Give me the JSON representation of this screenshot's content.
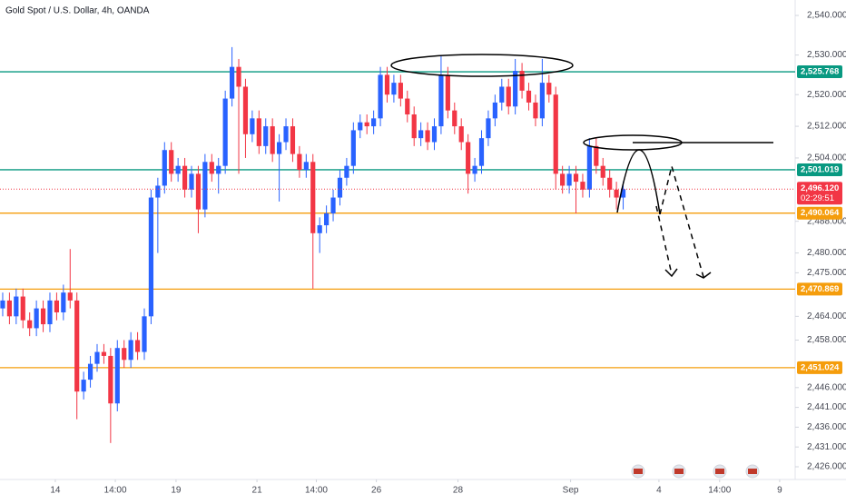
{
  "chart_data": {
    "type": "candlestick",
    "title": "Gold Spot / U.S. Dollar, 4h, OANDA",
    "up_color": "#2962ff",
    "down_color": "#f23645",
    "grid": false,
    "xlim": [
      -0.4,
      117.5
    ],
    "xticks": [
      {
        "value": 7.8,
        "label": "14"
      },
      {
        "value": 16.7,
        "label": "14:00"
      },
      {
        "value": 25.7,
        "label": "19"
      },
      {
        "value": 37.7,
        "label": "21"
      },
      {
        "value": 46.5,
        "label": "14:00"
      },
      {
        "value": 55.4,
        "label": "26"
      },
      {
        "value": 67.5,
        "label": "28"
      },
      {
        "value": 84.2,
        "label": "Sep"
      },
      {
        "value": 97.3,
        "label": "4"
      },
      {
        "value": 106.3,
        "label": "14:00"
      },
      {
        "value": 115.2,
        "label": "9"
      }
    ],
    "ylim": [
      2426,
      2540
    ],
    "yticks": [
      {
        "value": 2540,
        "label": "2,540.000"
      },
      {
        "value": 2530,
        "label": "2,530.000"
      },
      {
        "value": 2520,
        "label": "2,520.000"
      },
      {
        "value": 2512,
        "label": "2,512.000"
      },
      {
        "value": 2504,
        "label": "2,504.000"
      },
      {
        "value": 2488,
        "label": "2,488.000"
      },
      {
        "value": 2480,
        "label": "2,480.000"
      },
      {
        "value": 2475,
        "label": "2,475.000"
      },
      {
        "value": 2464,
        "label": "2,464.000"
      },
      {
        "value": 2458,
        "label": "2,458.000"
      },
      {
        "value": 2446,
        "label": "2,446.000"
      },
      {
        "value": 2441,
        "label": "2,441.000"
      },
      {
        "value": 2436,
        "label": "2,436.000"
      },
      {
        "value": 2431,
        "label": "2,431.000"
      },
      {
        "value": 2426,
        "label": "2,426.000"
      }
    ],
    "open": [
      2466,
      2468,
      2464,
      2469,
      2463,
      2461,
      2466,
      2462,
      2468,
      2465,
      2470,
      2468,
      2445,
      2448,
      2452,
      2455,
      2454,
      2442,
      2456,
      2453,
      2458,
      2455,
      2464,
      2494,
      2497,
      2506,
      2500,
      2502,
      2496,
      2500,
      2491,
      2503,
      2500,
      2502,
      2519,
      2527,
      2522,
      2510,
      2514,
      2507,
      2512,
      2505,
      2508,
      2512,
      2505,
      2501,
      2503,
      2485,
      2487,
      2490,
      2494,
      2499,
      2502,
      2511,
      2513,
      2512,
      2514,
      2525,
      2520,
      2523,
      2519,
      2515,
      2509,
      2511,
      2508,
      2512,
      2525,
      2516,
      2512,
      2508,
      2500,
      2502,
      2509,
      2514,
      2518,
      2522,
      2517,
      2526,
      2521,
      2518,
      2514,
      2523,
      2520,
      2500,
      2497,
      2500,
      2498,
      2496,
      2507,
      2502,
      2499,
      2496,
      2494
    ],
    "high": [
      2470,
      2470,
      2471,
      2471,
      2465,
      2468,
      2468,
      2470,
      2470,
      2472,
      2481,
      2470,
      2450,
      2454,
      2457,
      2457,
      2456,
      2458,
      2458,
      2460,
      2460,
      2466,
      2496,
      2499,
      2508,
      2508,
      2504,
      2504,
      2502,
      2502,
      2505,
      2505,
      2504,
      2521,
      2532,
      2529,
      2524,
      2516,
      2516,
      2514,
      2514,
      2510,
      2514,
      2514,
      2507,
      2505,
      2505,
      2489,
      2492,
      2496,
      2501,
      2504,
      2513,
      2515,
      2515,
      2516,
      2527,
      2527,
      2525,
      2525,
      2521,
      2517,
      2513,
      2513,
      2514,
      2530,
      2527,
      2518,
      2514,
      2510,
      2504,
      2511,
      2516,
      2520,
      2524,
      2524,
      2529,
      2528,
      2523,
      2520,
      2529,
      2525,
      2522,
      2502,
      2502,
      2502,
      2500,
      2509,
      2509,
      2504,
      2501,
      2498,
      2498
    ],
    "low": [
      2464,
      2462,
      2462,
      2461,
      2459,
      2459,
      2460,
      2460,
      2463,
      2463,
      2466,
      2438,
      2443,
      2446,
      2450,
      2452,
      2432,
      2440,
      2451,
      2451,
      2453,
      2453,
      2462,
      2480,
      2495,
      2498,
      2498,
      2494,
      2494,
      2485,
      2489,
      2498,
      2495,
      2500,
      2517,
      2500,
      2504,
      2508,
      2505,
      2505,
      2503,
      2493,
      2506,
      2503,
      2499,
      2499,
      2471,
      2480,
      2485,
      2488,
      2492,
      2497,
      2500,
      2509,
      2510,
      2510,
      2512,
      2518,
      2518,
      2517,
      2513,
      2507,
      2507,
      2506,
      2506,
      2510,
      2514,
      2510,
      2506,
      2495,
      2498,
      2500,
      2507,
      2512,
      2516,
      2515,
      2515,
      2519,
      2516,
      2512,
      2512,
      2518,
      2496,
      2495,
      2495,
      2490,
      2494,
      2494,
      2500,
      2497,
      2494,
      2491,
      2491
    ],
    "close": [
      2468,
      2464,
      2469,
      2463,
      2461,
      2466,
      2462,
      2468,
      2465,
      2470,
      2468,
      2445,
      2448,
      2452,
      2455,
      2454,
      2442,
      2456,
      2453,
      2458,
      2455,
      2464,
      2494,
      2497,
      2506,
      2500,
      2502,
      2496,
      2500,
      2491,
      2503,
      2500,
      2502,
      2519,
      2527,
      2522,
      2510,
      2514,
      2507,
      2512,
      2505,
      2508,
      2512,
      2505,
      2501,
      2503,
      2485,
      2487,
      2490,
      2494,
      2499,
      2502,
      2511,
      2513,
      2512,
      2514,
      2525,
      2520,
      2523,
      2519,
      2515,
      2509,
      2511,
      2508,
      2512,
      2525,
      2516,
      2512,
      2508,
      2500,
      2502,
      2509,
      2514,
      2518,
      2522,
      2517,
      2526,
      2521,
      2518,
      2514,
      2523,
      2520,
      2500,
      2497,
      2500,
      2498,
      2496,
      2507,
      2502,
      2499,
      2496,
      2494,
      2496.12
    ],
    "last_price_label": "2,496.120",
    "countdown": "02:29:51",
    "levels": [
      {
        "value": 2525.768,
        "label": "2,525.768",
        "color": "#089981"
      },
      {
        "value": 2501.019,
        "label": "2,501.019",
        "color": "#089981"
      },
      {
        "value": 2490.064,
        "label": "2,490.064",
        "color": "#f59d0c"
      },
      {
        "value": 2470.869,
        "label": "2,470.869",
        "color": "#f59d0c"
      },
      {
        "value": 2451.024,
        "label": "2,451.024",
        "color": "#f59d0c"
      }
    ]
  }
}
